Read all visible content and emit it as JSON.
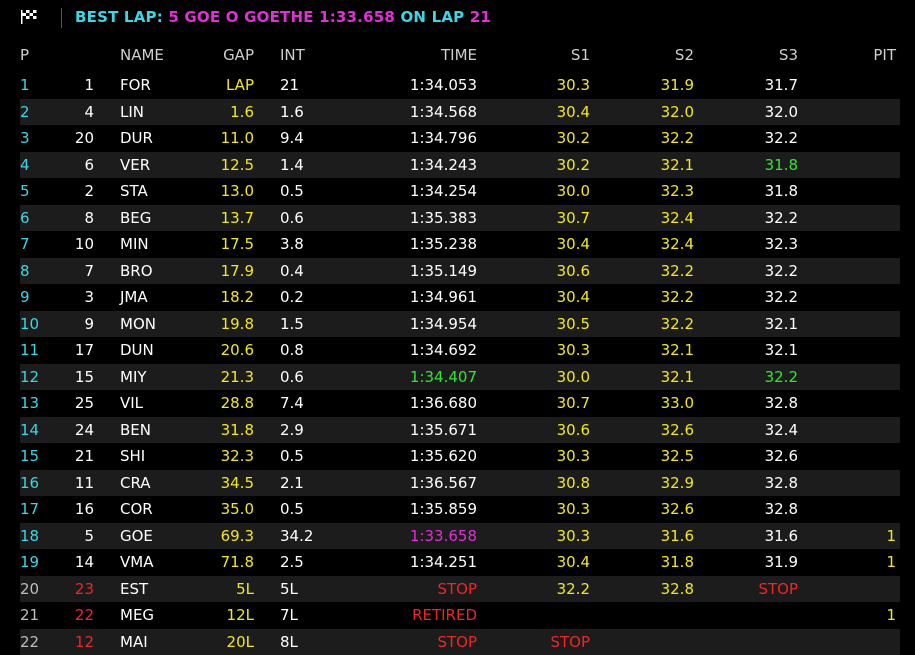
{
  "header": {
    "flag_icon": "checkered-flag-icon",
    "best_lap_label": "BEST LAP:",
    "best_lap_driver": "5 GOE O GOETHE 1:33.658",
    "on_lap_label": "ON LAP",
    "on_lap_value": "21"
  },
  "columns": {
    "pos": "P",
    "name": "NAME",
    "gap": "GAP",
    "int": "INT",
    "time": "TIME",
    "s1": "S1",
    "s2": "S2",
    "s3": "S3",
    "pit": "PIT"
  },
  "colors": {
    "cyan": "#3dd6e6",
    "yellow": "#f2e820",
    "red": "#f02626",
    "green": "#2ee82e",
    "purple": "#e22fd8",
    "row_alt": "#1c1c1c"
  },
  "rows": [
    {
      "pos": "1",
      "num": "1",
      "name": "FOR",
      "gap": "LAP",
      "int": "21",
      "time": "1:34.053",
      "s1": "30.3",
      "s2": "31.9",
      "s3": "31.7",
      "pit": ""
    },
    {
      "pos": "2",
      "num": "4",
      "name": "LIN",
      "gap": "1.6",
      "int": "1.6",
      "time": "1:34.568",
      "s1": "30.4",
      "s2": "32.0",
      "s3": "32.0",
      "pit": ""
    },
    {
      "pos": "3",
      "num": "20",
      "name": "DUR",
      "gap": "11.0",
      "int": "9.4",
      "time": "1:34.796",
      "s1": "30.2",
      "s2": "32.2",
      "s3": "32.2",
      "pit": ""
    },
    {
      "pos": "4",
      "num": "6",
      "name": "VER",
      "gap": "12.5",
      "int": "1.4",
      "time": "1:34.243",
      "s1": "30.2",
      "s2": "32.1",
      "s3": "31.8",
      "pit": ""
    },
    {
      "pos": "5",
      "num": "2",
      "name": "STA",
      "gap": "13.0",
      "int": "0.5",
      "time": "1:34.254",
      "s1": "30.0",
      "s2": "32.3",
      "s3": "31.8",
      "pit": ""
    },
    {
      "pos": "6",
      "num": "8",
      "name": "BEG",
      "gap": "13.7",
      "int": "0.6",
      "time": "1:35.383",
      "s1": "30.7",
      "s2": "32.4",
      "s3": "32.2",
      "pit": ""
    },
    {
      "pos": "7",
      "num": "10",
      "name": "MIN",
      "gap": "17.5",
      "int": "3.8",
      "time": "1:35.238",
      "s1": "30.4",
      "s2": "32.4",
      "s3": "32.3",
      "pit": ""
    },
    {
      "pos": "8",
      "num": "7",
      "name": "BRO",
      "gap": "17.9",
      "int": "0.4",
      "time": "1:35.149",
      "s1": "30.6",
      "s2": "32.2",
      "s3": "32.2",
      "pit": ""
    },
    {
      "pos": "9",
      "num": "3",
      "name": "JMA",
      "gap": "18.2",
      "int": "0.2",
      "time": "1:34.961",
      "s1": "30.4",
      "s2": "32.2",
      "s3": "32.2",
      "pit": ""
    },
    {
      "pos": "10",
      "num": "9",
      "name": "MON",
      "gap": "19.8",
      "int": "1.5",
      "time": "1:34.954",
      "s1": "30.5",
      "s2": "32.2",
      "s3": "32.1",
      "pit": ""
    },
    {
      "pos": "11",
      "num": "17",
      "name": "DUN",
      "gap": "20.6",
      "int": "0.8",
      "time": "1:34.692",
      "s1": "30.3",
      "s2": "32.1",
      "s3": "32.1",
      "pit": ""
    },
    {
      "pos": "12",
      "num": "15",
      "name": "MIY",
      "gap": "21.3",
      "int": "0.6",
      "time": "1:34.407",
      "s1": "30.0",
      "s2": "32.1",
      "s3": "32.2",
      "pit": ""
    },
    {
      "pos": "13",
      "num": "25",
      "name": "VIL",
      "gap": "28.8",
      "int": "7.4",
      "time": "1:36.680",
      "s1": "30.7",
      "s2": "33.0",
      "s3": "32.8",
      "pit": ""
    },
    {
      "pos": "14",
      "num": "24",
      "name": "BEN",
      "gap": "31.8",
      "int": "2.9",
      "time": "1:35.671",
      "s1": "30.6",
      "s2": "32.6",
      "s3": "32.4",
      "pit": ""
    },
    {
      "pos": "15",
      "num": "21",
      "name": "SHI",
      "gap": "32.3",
      "int": "0.5",
      "time": "1:35.620",
      "s1": "30.3",
      "s2": "32.5",
      "s3": "32.6",
      "pit": ""
    },
    {
      "pos": "16",
      "num": "11",
      "name": "CRA",
      "gap": "34.5",
      "int": "2.1",
      "time": "1:36.567",
      "s1": "30.8",
      "s2": "32.9",
      "s3": "32.8",
      "pit": ""
    },
    {
      "pos": "17",
      "num": "16",
      "name": "COR",
      "gap": "35.0",
      "int": "0.5",
      "time": "1:35.859",
      "s1": "30.3",
      "s2": "32.6",
      "s3": "32.8",
      "pit": ""
    },
    {
      "pos": "18",
      "num": "5",
      "name": "GOE",
      "gap": "69.3",
      "int": "34.2",
      "time": "1:33.658",
      "s1": "30.3",
      "s2": "31.6",
      "s3": "31.6",
      "pit": "1"
    },
    {
      "pos": "19",
      "num": "14",
      "name": "VMA",
      "gap": "71.8",
      "int": "2.5",
      "time": "1:34.251",
      "s1": "30.4",
      "s2": "31.8",
      "s3": "31.9",
      "pit": "1"
    },
    {
      "pos": "20",
      "num": "23",
      "name": "EST",
      "gap": "5L",
      "int": "5L",
      "time": "STOP",
      "s1": "32.2",
      "s2": "32.8",
      "s3": "STOP",
      "pit": ""
    },
    {
      "pos": "21",
      "num": "22",
      "name": "MEG",
      "gap": "12L",
      "int": "7L",
      "time": "RETIRED",
      "s1": "",
      "s2": "",
      "s3": "",
      "pit": "1"
    },
    {
      "pos": "22",
      "num": "12",
      "name": "MAI",
      "gap": "20L",
      "int": "8L",
      "time": "STOP",
      "s1": "STOP",
      "s2": "",
      "s3": "",
      "pit": ""
    }
  ]
}
